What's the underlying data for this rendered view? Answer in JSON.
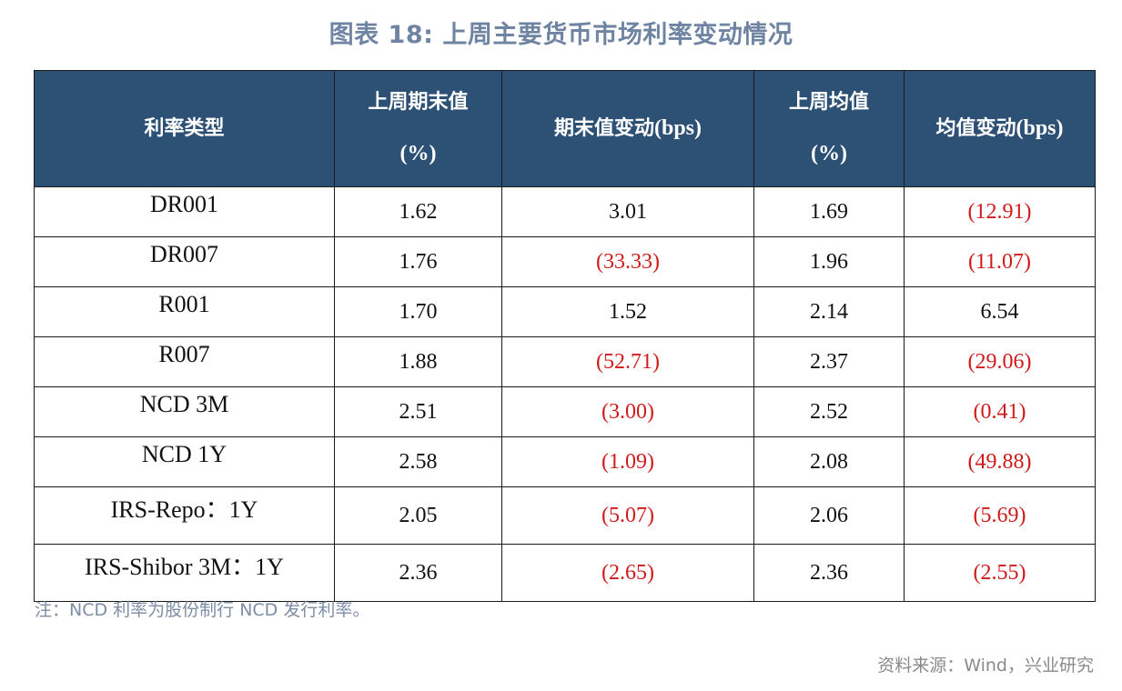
{
  "title": "图表 18: 上周主要货币市场利率变动情况",
  "table": {
    "headers": [
      {
        "label": "利率类型"
      },
      {
        "label": "上周期末值",
        "unit": "(%)"
      },
      {
        "label": "期末值变动",
        "unit": "(bps)"
      },
      {
        "label": "上周均值",
        "unit": "(%)"
      },
      {
        "label": "均值变动",
        "unit": "(bps)"
      }
    ],
    "rows": [
      {
        "name": "DR001",
        "end_value": "1.62",
        "end_change": "3.01",
        "avg_value": "1.69",
        "avg_change": "(12.91)"
      },
      {
        "name": "DR007",
        "end_value": "1.76",
        "end_change": "(33.33)",
        "avg_value": "1.96",
        "avg_change": "(11.07)"
      },
      {
        "name": "R001",
        "end_value": "1.70",
        "end_change": "1.52",
        "avg_value": "2.14",
        "avg_change": "6.54"
      },
      {
        "name": "R007",
        "end_value": "1.88",
        "end_change": "(52.71)",
        "avg_value": "2.37",
        "avg_change": "(29.06)"
      },
      {
        "name": "NCD 3M",
        "end_value": "2.51",
        "end_change": "(3.00)",
        "avg_value": "2.52",
        "avg_change": "(0.41)"
      },
      {
        "name": "NCD 1Y",
        "end_value": "2.58",
        "end_change": "(1.09)",
        "avg_value": "2.08",
        "avg_change": "(49.88)"
      },
      {
        "name": "IRS-Repo：1Y",
        "end_value": "2.05",
        "end_change": "(5.07)",
        "avg_value": "2.06",
        "avg_change": "(5.69)"
      },
      {
        "name": "IRS-Shibor 3M：1Y",
        "end_value": "2.36",
        "end_change": "(2.65)",
        "avg_value": "2.36",
        "avg_change": "(2.55)"
      }
    ]
  },
  "colors": {
    "header_bg": "#2d5075",
    "negative": "#d11a1a",
    "title": "#6f84a3"
  },
  "note": "注：NCD 利率为股份制行 NCD 发行利率。",
  "source": "资料来源：Wind，兴业研究"
}
